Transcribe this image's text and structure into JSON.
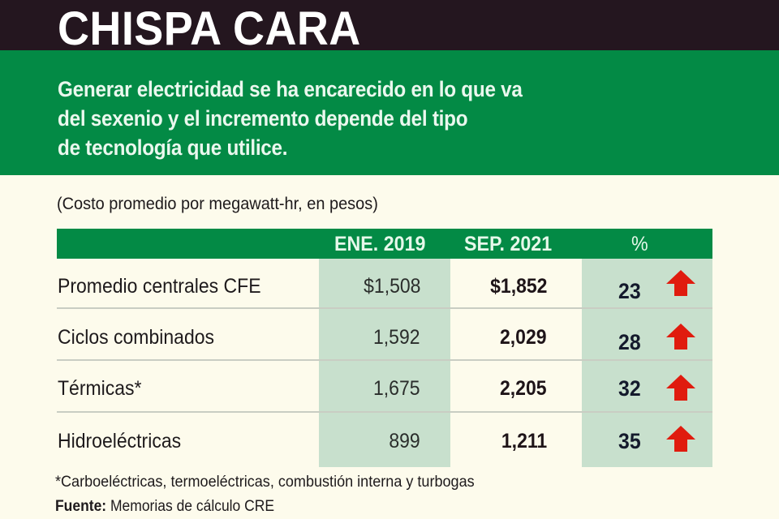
{
  "header": {
    "title": "CHISPA CARA",
    "dek": "Generar electricidad se ha encarecido en lo que va del sexenio y el incremento depende del tipo de tecnología que utilice.",
    "dek_lines": [
      "Generar electricidad se ha encarecido en lo que va",
      "del sexenio y el incremento depende del tipo",
      "de tecnología que utilice."
    ]
  },
  "unit_note": "(Costo promedio por megawatt-hr, en pesos)",
  "table": {
    "columns": [
      "",
      "ENE. 2019",
      "SEP. 2021",
      "%"
    ],
    "rows": [
      {
        "label": "Promedio centrales CFE",
        "ene_2019": "$1,508",
        "sep_2021": "$1,852",
        "pct": "23",
        "trend": "up-arrow-icon"
      },
      {
        "label": "Ciclos combinados",
        "ene_2019": "1,592",
        "sep_2021": "2,029",
        "pct": "28",
        "trend": "up-arrow-icon"
      },
      {
        "label": "Térmicas*",
        "ene_2019": "1,675",
        "sep_2021": "2,205",
        "pct": "32",
        "trend": "up-arrow-icon"
      },
      {
        "label": "Hidroeléctricas",
        "ene_2019": "899",
        "sep_2021": "1,211",
        "pct": "35",
        "trend": "up-arrow-icon"
      }
    ]
  },
  "footnote": "*Carboeléctricas, termoeléctricas, combustión interna y turbogas",
  "source": {
    "label": "Fuente:",
    "text": " Memorias de cálculo CRE"
  },
  "colors": {
    "dark_band": "#24161f",
    "green": "#038a45",
    "light_green_column": "#c8e0cd",
    "background": "#fdfbec",
    "arrow_red": "#e01b0e"
  }
}
